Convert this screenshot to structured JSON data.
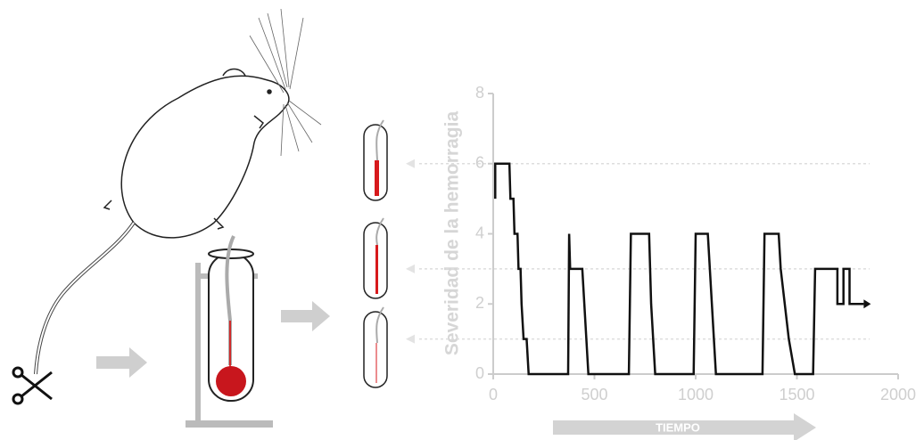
{
  "chart_data": {
    "type": "line",
    "y_label": "Severidad de la hemorragia",
    "x_label": "TIEMPO",
    "color": "#111111",
    "x": [
      10,
      10,
      80,
      85,
      100,
      105,
      120,
      125,
      135,
      140,
      150,
      165,
      175,
      370,
      375,
      380,
      440,
      450,
      470,
      670,
      680,
      770,
      780,
      800,
      990,
      1000,
      1060,
      1080,
      1100,
      1330,
      1340,
      1410,
      1420,
      1440,
      1460,
      1490,
      1580,
      1590,
      1700,
      1700,
      1730,
      1730,
      1760,
      1760,
      1830
    ],
    "values": [
      5,
      6,
      6,
      5,
      5,
      4,
      4,
      3,
      3,
      2,
      1,
      1,
      0,
      0,
      4,
      3,
      3,
      2,
      0,
      0,
      4,
      4,
      2,
      0,
      0,
      4,
      4,
      2,
      0,
      0,
      4,
      4,
      3,
      2,
      1,
      0,
      0,
      3,
      3,
      2,
      2,
      3,
      3,
      2,
      2
    ],
    "xlim": [
      0,
      2000
    ],
    "xticks": [
      0,
      500,
      1000,
      1500,
      2000
    ],
    "ylim": [
      0,
      8
    ],
    "yticks": [
      0,
      2,
      4,
      6,
      8
    ],
    "reference_lines": [
      6,
      3,
      1
    ]
  }
}
